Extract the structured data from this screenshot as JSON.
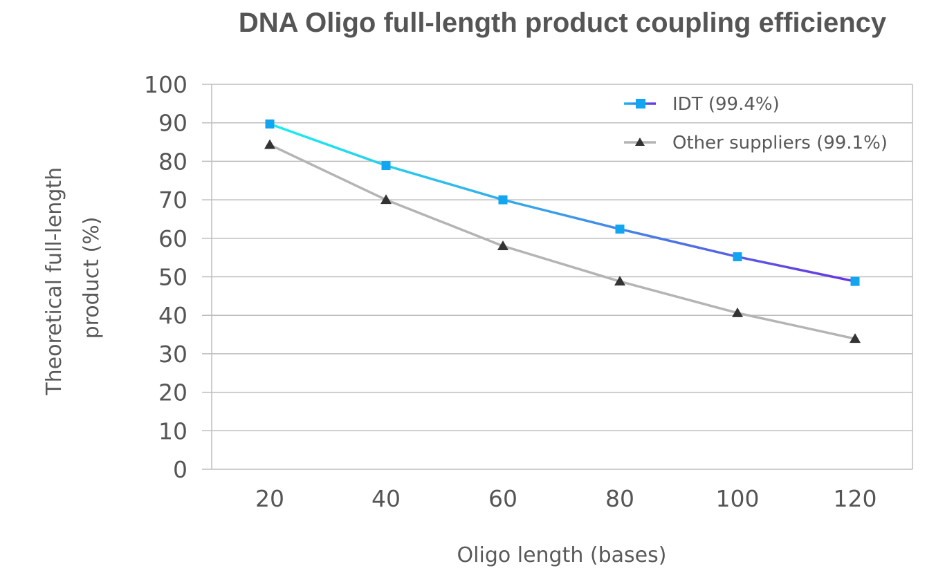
{
  "chart_data": {
    "type": "line",
    "title": "DNA Oligo full-length product coupling efficiency",
    "xlabel": "Oligo length (bases)",
    "ylabel_lines": [
      "Theoretical full-length",
      "product (%)"
    ],
    "x": [
      20,
      40,
      60,
      80,
      100,
      120
    ],
    "y_ticks": [
      0,
      10,
      20,
      30,
      40,
      50,
      60,
      70,
      80,
      90,
      100
    ],
    "ylim": [
      0,
      100
    ],
    "grid": true,
    "legend_position": "top-right",
    "series": [
      {
        "name": "IDT (99.4%)",
        "values": [
          89.7,
          78.9,
          70.0,
          62.4,
          55.2,
          48.8
        ],
        "marker": "square",
        "gradient": [
          "#19f0f0",
          "#6a33e0"
        ],
        "marker_color": "#12a5f0"
      },
      {
        "name": "Other suppliers (99.1%)",
        "values": [
          84.3,
          70.0,
          58.0,
          48.8,
          40.6,
          33.9
        ],
        "marker": "triangle",
        "line_color": "#b4b4b4",
        "marker_color": "#333333"
      }
    ]
  }
}
